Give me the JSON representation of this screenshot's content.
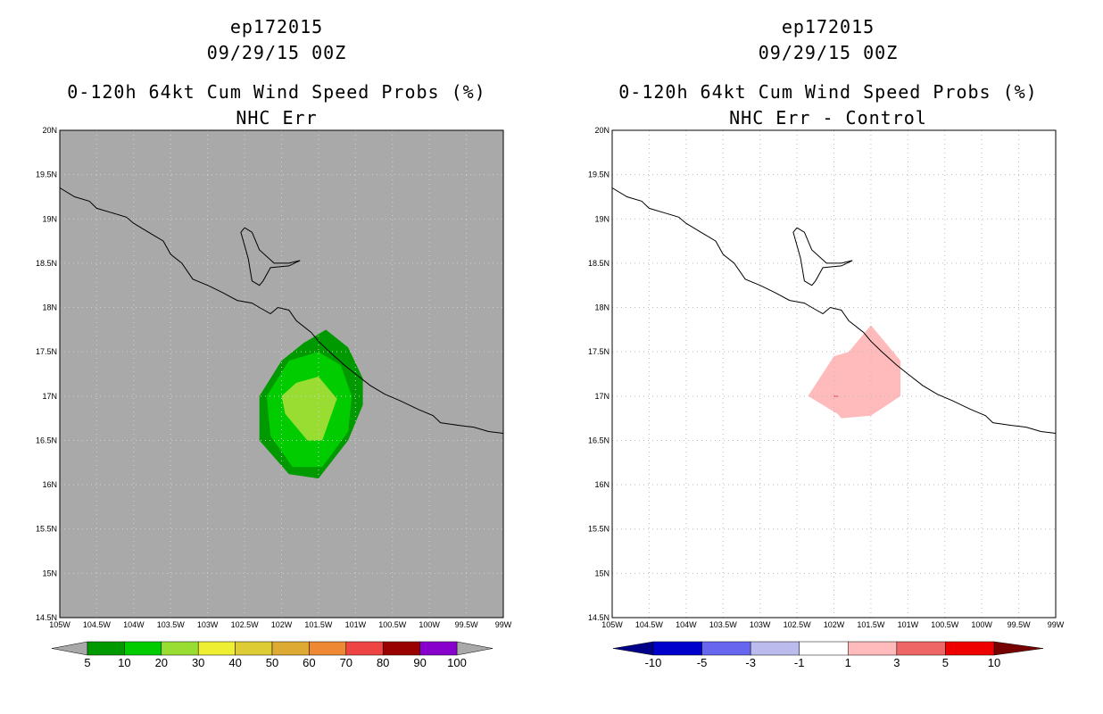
{
  "left_panel": {
    "title_line1": "ep172015",
    "title_line2": "09/29/15 00Z",
    "title_line3": "0-120h 64kt Cum Wind Speed Probs (%)",
    "title_line4": "NHC Err",
    "background_color": "#a9a9a9",
    "colorbar_labels": [
      "5",
      "10",
      "20",
      "30",
      "40",
      "50",
      "60",
      "70",
      "80",
      "90",
      "100"
    ],
    "colorbar_colors": [
      "#009900",
      "#00cc00",
      "#99dd33",
      "#eeee33",
      "#ddcc33",
      "#ddaa33",
      "#ee8833",
      "#ee4444",
      "#990000",
      "#8800cc"
    ]
  },
  "right_panel": {
    "title_line1": "ep172015",
    "title_line2": "09/29/15 00Z",
    "title_line3": "0-120h 64kt Cum Wind Speed Probs (%)",
    "title_line4": "NHC Err - Control",
    "background_color": "#ffffff",
    "colorbar_labels": [
      "-10",
      "-5",
      "-3",
      "-1",
      "1",
      "3",
      "5",
      "10"
    ],
    "colorbar_colors": [
      "#0000cc",
      "#6666ee",
      "#bbbbee",
      "#ffffff",
      "#ffbbbb",
      "#ee6666",
      "#ee0000"
    ]
  },
  "lat_labels": [
    "20N",
    "19.5N",
    "19N",
    "18.5N",
    "18N",
    "17.5N",
    "17N",
    "16.5N",
    "16N",
    "15.5N",
    "15N",
    "14.5N"
  ],
  "lon_labels": [
    "105W",
    "104.5W",
    "104W",
    "103.5W",
    "103W",
    "102.5W",
    "102W",
    "101.5W",
    "101W",
    "100.5W",
    "100W",
    "99.5W",
    "99W"
  ],
  "map": {
    "lat_range": [
      14.5,
      20
    ],
    "lon_range": [
      -105,
      -99
    ],
    "coastline": [
      [
        -105,
        19.35
      ],
      [
        -104.8,
        19.25
      ],
      [
        -104.6,
        19.2
      ],
      [
        -104.5,
        19.12
      ],
      [
        -104.3,
        19.07
      ],
      [
        -104.1,
        19.02
      ],
      [
        -104,
        18.95
      ],
      [
        -103.8,
        18.85
      ],
      [
        -103.6,
        18.75
      ],
      [
        -103.5,
        18.6
      ],
      [
        -103.35,
        18.5
      ],
      [
        -103.2,
        18.32
      ],
      [
        -103,
        18.25
      ],
      [
        -102.8,
        18.17
      ],
      [
        -102.6,
        18.08
      ],
      [
        -102.4,
        18.05
      ],
      [
        -102.3,
        18.0
      ],
      [
        -102.15,
        17.93
      ],
      [
        -102.05,
        18.0
      ],
      [
        -101.9,
        17.97
      ],
      [
        -101.8,
        17.85
      ],
      [
        -101.6,
        17.72
      ],
      [
        -101.5,
        17.62
      ],
      [
        -101.35,
        17.5
      ],
      [
        -101.15,
        17.35
      ],
      [
        -101.0,
        17.25
      ],
      [
        -100.8,
        17.12
      ],
      [
        -100.6,
        17.02
      ],
      [
        -100.4,
        16.95
      ],
      [
        -100.15,
        16.85
      ],
      [
        -99.95,
        16.78
      ],
      [
        -99.85,
        16.7
      ],
      [
        -99.6,
        16.67
      ],
      [
        -99.4,
        16.65
      ],
      [
        -99.2,
        16.6
      ],
      [
        -99,
        16.58
      ]
    ],
    "lake": [
      [
        -102.5,
        18.9
      ],
      [
        -102.4,
        18.85
      ],
      [
        -102.3,
        18.65
      ],
      [
        -102.1,
        18.5
      ],
      [
        -101.9,
        18.5
      ],
      [
        -101.75,
        18.53
      ],
      [
        -101.9,
        18.47
      ],
      [
        -102.15,
        18.45
      ],
      [
        -102.25,
        18.3
      ],
      [
        -102.3,
        18.25
      ],
      [
        -102.4,
        18.3
      ],
      [
        -102.45,
        18.55
      ],
      [
        -102.5,
        18.7
      ],
      [
        -102.55,
        18.85
      ],
      [
        -102.5,
        18.9
      ]
    ],
    "left_contours": [
      {
        "level": "5",
        "color": "#009900",
        "points": [
          [
            -101.4,
            17.75
          ],
          [
            -101.1,
            17.55
          ],
          [
            -100.9,
            17.2
          ],
          [
            -100.9,
            16.9
          ],
          [
            -101.1,
            16.5
          ],
          [
            -101.5,
            16.07
          ],
          [
            -101.9,
            16.12
          ],
          [
            -102.3,
            16.5
          ],
          [
            -102.3,
            17.0
          ],
          [
            -102.0,
            17.4
          ],
          [
            -101.7,
            17.6
          ]
        ]
      },
      {
        "level": "10",
        "color": "#00cc00",
        "points": [
          [
            -101.5,
            17.5
          ],
          [
            -101.2,
            17.35
          ],
          [
            -101.05,
            17.0
          ],
          [
            -101.1,
            16.6
          ],
          [
            -101.45,
            16.2
          ],
          [
            -101.85,
            16.2
          ],
          [
            -102.15,
            16.55
          ],
          [
            -102.2,
            17.0
          ],
          [
            -101.9,
            17.4
          ]
        ]
      },
      {
        "level": "20",
        "color": "#99dd33",
        "points": [
          [
            -101.5,
            17.22
          ],
          [
            -101.25,
            16.97
          ],
          [
            -101.45,
            16.5
          ],
          [
            -101.65,
            16.5
          ],
          [
            -101.95,
            16.8
          ],
          [
            -102.0,
            17.0
          ],
          [
            -101.8,
            17.15
          ]
        ]
      }
    ],
    "right_contours": [
      {
        "level": "1",
        "color": "#ffbbbb",
        "points": [
          [
            -101.5,
            17.8
          ],
          [
            -101.1,
            17.4
          ],
          [
            -101.1,
            17.0
          ],
          [
            -101.5,
            16.78
          ],
          [
            -101.9,
            16.75
          ],
          [
            -101.95,
            16.8
          ],
          [
            -102.35,
            17.0
          ],
          [
            -102.0,
            17.45
          ],
          [
            -101.8,
            17.5
          ]
        ]
      },
      {
        "level": "3",
        "color": "#ee6666",
        "points": [
          [
            -102.0,
            17.01
          ],
          [
            -101.94,
            17.0
          ],
          [
            -101.94,
            16.99
          ],
          [
            -102.0,
            16.99
          ]
        ]
      }
    ]
  }
}
